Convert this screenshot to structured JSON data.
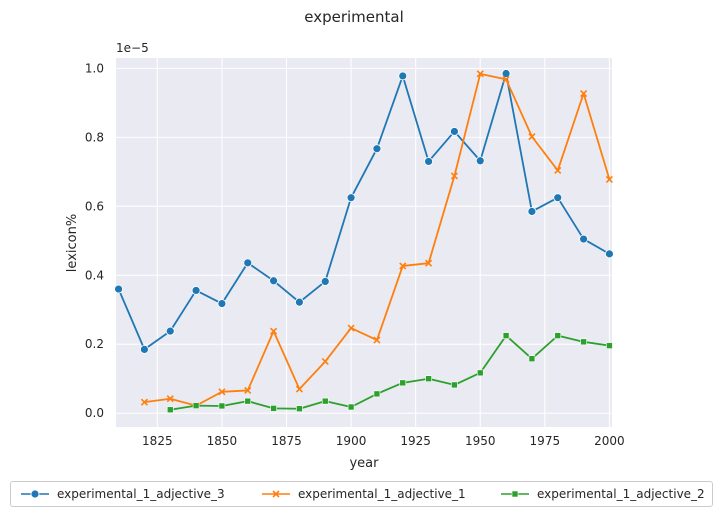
{
  "chart_data": {
    "type": "line",
    "title": "experimental",
    "xlabel": "year",
    "ylabel": "lexicon%",
    "y_offset_text": "1e−5",
    "xlim": [
      1809,
      2001
    ],
    "ylim": [
      -0.04,
      1.03
    ],
    "x_ticks": [
      1825,
      1850,
      1875,
      1900,
      1925,
      1950,
      1975,
      2000
    ],
    "x_tick_labels": [
      "1825",
      "1850",
      "1875",
      "1900",
      "1925",
      "1950",
      "1975",
      "2000"
    ],
    "y_ticks": [
      0.0,
      0.2,
      0.4,
      0.6,
      0.8,
      1.0
    ],
    "y_tick_labels": [
      "0.0",
      "0.2",
      "0.4",
      "0.6",
      "0.8",
      "1.0"
    ],
    "grid": true,
    "legend_position": "bottom-center",
    "series": [
      {
        "name": "experimental_1_adjective_3",
        "color": "#1f77b4",
        "marker": "circle",
        "x": [
          1810,
          1820,
          1830,
          1840,
          1850,
          1860,
          1870,
          1880,
          1890,
          1900,
          1910,
          1920,
          1930,
          1940,
          1950,
          1960,
          1970,
          1980,
          1990,
          2000
        ],
        "y": [
          0.36,
          0.185,
          0.238,
          0.356,
          0.318,
          0.436,
          0.384,
          0.322,
          0.382,
          0.625,
          0.767,
          0.978,
          0.73,
          0.817,
          0.732,
          0.985,
          0.585,
          0.625,
          0.505,
          0.462
        ]
      },
      {
        "name": "experimental_1_adjective_1",
        "color": "#ff7f0e",
        "marker": "x",
        "x": [
          1820,
          1830,
          1840,
          1850,
          1860,
          1870,
          1880,
          1890,
          1900,
          1910,
          1920,
          1930,
          1940,
          1950,
          1960,
          1970,
          1980,
          1990,
          2000
        ],
        "y": [
          0.032,
          0.042,
          0.022,
          0.062,
          0.066,
          0.238,
          0.07,
          0.15,
          0.247,
          0.212,
          0.427,
          0.435,
          0.688,
          0.984,
          0.968,
          0.802,
          0.704,
          0.927,
          0.678
        ]
      },
      {
        "name": "experimental_1_adjective_2",
        "color": "#2ca02c",
        "marker": "square",
        "x": [
          1830,
          1840,
          1850,
          1860,
          1870,
          1880,
          1890,
          1900,
          1910,
          1920,
          1930,
          1940,
          1950,
          1960,
          1970,
          1980,
          1990,
          2000
        ],
        "y": [
          0.01,
          0.022,
          0.021,
          0.035,
          0.014,
          0.013,
          0.035,
          0.018,
          0.056,
          0.088,
          0.1,
          0.082,
          0.117,
          0.225,
          0.158,
          0.225,
          0.207,
          0.196
        ]
      }
    ]
  }
}
